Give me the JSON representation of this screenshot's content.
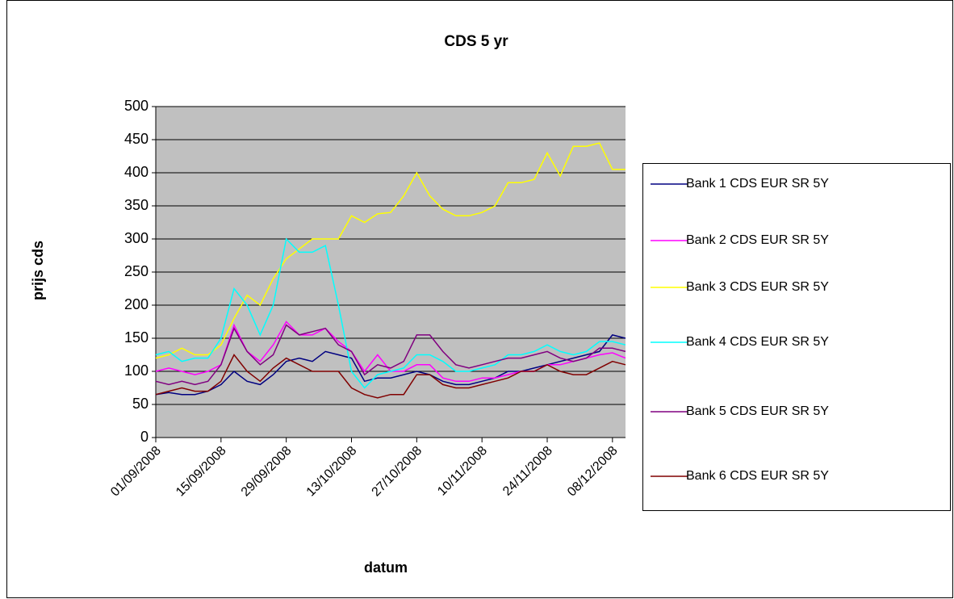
{
  "chart_data": {
    "type": "line",
    "title": "CDS 5 yr",
    "x_label": "datum",
    "y_label": "prijs cds",
    "categories": [
      "01/09/2008",
      null,
      null,
      null,
      null,
      "15/09/2008",
      null,
      null,
      null,
      null,
      "29/09/2008",
      null,
      null,
      null,
      null,
      "13/10/2008",
      null,
      null,
      null,
      null,
      "27/10/2008",
      null,
      null,
      null,
      null,
      "10/11/2008",
      null,
      null,
      null,
      null,
      "24/11/2008",
      null,
      null,
      null,
      null,
      "08/12/2008",
      null
    ],
    "ylim": [
      0,
      500
    ],
    "yticks": [
      0,
      50,
      100,
      150,
      200,
      250,
      300,
      350,
      400,
      450,
      500
    ],
    "grid": true,
    "legend": "right",
    "series": [
      {
        "name": "Bank 1 CDS EUR SR 5Y",
        "color": "#000080",
        "values": [
          65,
          68,
          65,
          65,
          70,
          80,
          100,
          85,
          80,
          95,
          115,
          120,
          115,
          130,
          125,
          120,
          85,
          90,
          90,
          95,
          100,
          95,
          85,
          80,
          80,
          85,
          90,
          100,
          100,
          105,
          110,
          115,
          120,
          125,
          130,
          155,
          150
        ]
      },
      {
        "name": "Bank 2 CDS EUR SR 5Y",
        "color": "#ff00ff",
        "values": [
          100,
          105,
          100,
          95,
          100,
          110,
          170,
          130,
          115,
          140,
          175,
          155,
          155,
          165,
          145,
          130,
          100,
          125,
          100,
          100,
          110,
          110,
          90,
          85,
          85,
          90,
          90,
          95,
          100,
          100,
          110,
          110,
          115,
          120,
          125,
          128,
          120
        ]
      },
      {
        "name": "Bank 3 CDS EUR SR 5Y",
        "color": "#ffff00",
        "values": [
          120,
          125,
          135,
          125,
          125,
          140,
          180,
          215,
          200,
          240,
          270,
          285,
          300,
          300,
          300,
          335,
          325,
          338,
          340,
          365,
          400,
          365,
          345,
          335,
          335,
          340,
          350,
          385,
          385,
          390,
          430,
          395,
          440,
          440,
          445,
          405,
          405
        ]
      },
      {
        "name": "Bank 4 CDS EUR SR 5Y",
        "color": "#00ffff",
        "values": [
          125,
          130,
          115,
          120,
          120,
          150,
          225,
          200,
          155,
          200,
          300,
          280,
          280,
          290,
          200,
          100,
          75,
          95,
          100,
          105,
          125,
          125,
          115,
          100,
          100,
          105,
          110,
          125,
          125,
          130,
          140,
          130,
          125,
          130,
          145,
          145,
          140
        ]
      },
      {
        "name": "Bank 5 CDS EUR SR 5Y",
        "color": "#800080",
        "values": [
          85,
          80,
          85,
          80,
          85,
          110,
          165,
          130,
          110,
          125,
          170,
          155,
          160,
          165,
          140,
          130,
          95,
          110,
          105,
          115,
          155,
          155,
          130,
          110,
          105,
          110,
          115,
          120,
          120,
          125,
          130,
          120,
          115,
          120,
          135,
          135,
          130
        ]
      },
      {
        "name": "Bank 6 CDS EUR SR 5Y",
        "color": "#800000",
        "values": [
          65,
          70,
          75,
          70,
          70,
          85,
          125,
          100,
          85,
          105,
          120,
          110,
          100,
          100,
          100,
          75,
          65,
          60,
          65,
          65,
          95,
          95,
          80,
          75,
          75,
          80,
          85,
          90,
          100,
          100,
          110,
          100,
          95,
          95,
          105,
          115,
          110
        ]
      }
    ]
  }
}
